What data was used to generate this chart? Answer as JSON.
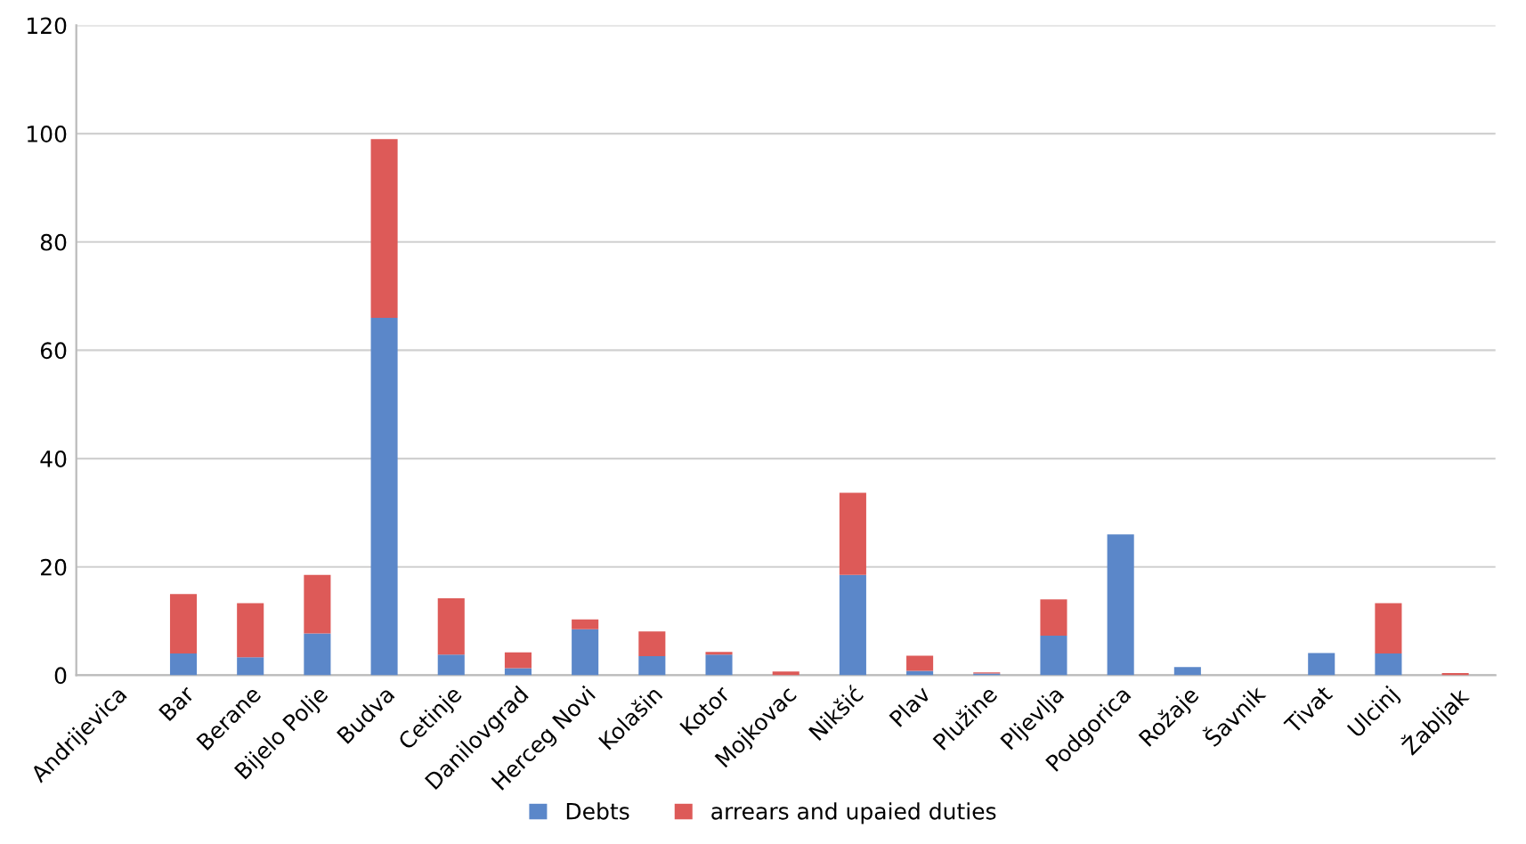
{
  "chart_data": {
    "type": "bar",
    "stacked": true,
    "categories": [
      "Andrijevica",
      "Bar",
      "Berane",
      "Bijelo Polje",
      "Budva",
      "Cetinje",
      "Danilovgrad",
      "Herceg Novi",
      "Kolašin",
      "Kotor",
      "Mojkovac",
      "Nikšić",
      "Plav",
      "Plužine",
      "Pljevlja",
      "Podgorica",
      "Rožaje",
      "Šavnik",
      "Tivat",
      "Ulcinj",
      "Žabljak"
    ],
    "series": [
      {
        "name": "Debts",
        "color": "#5b87c9",
        "values": [
          0,
          4,
          3.3,
          7.7,
          66,
          3.8,
          1.3,
          8.5,
          3.5,
          3.8,
          0,
          18.5,
          0.8,
          0.3,
          7.3,
          26,
          1.5,
          0,
          4.1,
          4,
          0
        ]
      },
      {
        "name": "arrears and upaied duties",
        "color": "#dd5a58",
        "values": [
          0,
          11,
          10,
          10.8,
          33,
          10.4,
          2.9,
          1.8,
          4.6,
          0.5,
          0.7,
          15.2,
          2.8,
          0.2,
          6.7,
          0,
          0,
          0,
          0,
          9.3,
          0.4
        ]
      }
    ],
    "ylim": [
      0,
      120
    ],
    "yticks": [
      0,
      20,
      40,
      60,
      80,
      100,
      120
    ],
    "grid": "y",
    "legend": "bottom"
  }
}
